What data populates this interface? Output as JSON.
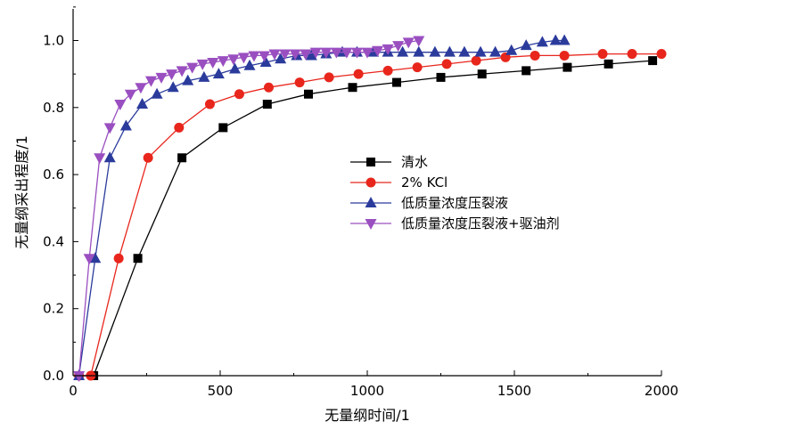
{
  "chart_data": {
    "type": "line",
    "title": "",
    "xlabel": "无量纲时间/1",
    "ylabel": "无量纲采出程度/1",
    "xlim": [
      0,
      2000
    ],
    "ylim": [
      0,
      1.1
    ],
    "xticks": [
      0,
      500,
      1000,
      1500,
      2000
    ],
    "yticks": [
      0.0,
      0.2,
      0.4,
      0.6,
      0.8,
      1.0
    ],
    "xtick_labels": [
      "0",
      "500",
      "1000",
      "1500",
      "2000"
    ],
    "ytick_labels": [
      "0.0",
      "0.2",
      "0.4",
      "0.6",
      "0.8",
      "1.0"
    ],
    "grid": false,
    "legend_position": "center-right",
    "series": [
      {
        "name": "清水",
        "color": "#000000",
        "marker": "square",
        "x": [
          20,
          70,
          220,
          370,
          510,
          660,
          800,
          950,
          1100,
          1250,
          1390,
          1540,
          1680,
          1820,
          1970
        ],
        "y": [
          0.0,
          0.0,
          0.35,
          0.65,
          0.74,
          0.81,
          0.84,
          0.86,
          0.875,
          0.89,
          0.9,
          0.91,
          0.92,
          0.93,
          0.94
        ]
      },
      {
        "name": "2% KCl",
        "color": "#e8261c",
        "marker": "circle",
        "x": [
          20,
          60,
          155,
          255,
          360,
          465,
          565,
          665,
          770,
          870,
          970,
          1070,
          1170,
          1270,
          1370,
          1470,
          1570,
          1670,
          1800,
          1900,
          2000
        ],
        "y": [
          0.0,
          0.0,
          0.35,
          0.65,
          0.74,
          0.81,
          0.84,
          0.86,
          0.875,
          0.89,
          0.9,
          0.91,
          0.92,
          0.93,
          0.94,
          0.95,
          0.955,
          0.955,
          0.96,
          0.96,
          0.96
        ]
      },
      {
        "name": "低质量浓度压裂液",
        "color": "#2b3b9c",
        "marker": "triangle-up",
        "x": [
          20,
          75,
          125,
          180,
          235,
          285,
          340,
          390,
          445,
          495,
          550,
          600,
          655,
          705,
          760,
          810,
          860,
          915,
          965,
          1020,
          1070,
          1120,
          1175,
          1230,
          1280,
          1330,
          1385,
          1435,
          1490,
          1540,
          1595,
          1640,
          1670
        ],
        "y": [
          0.0,
          0.35,
          0.65,
          0.745,
          0.81,
          0.84,
          0.86,
          0.88,
          0.89,
          0.9,
          0.915,
          0.925,
          0.935,
          0.945,
          0.955,
          0.955,
          0.96,
          0.965,
          0.965,
          0.965,
          0.965,
          0.965,
          0.965,
          0.965,
          0.965,
          0.965,
          0.965,
          0.965,
          0.97,
          0.985,
          0.995,
          1.0,
          1.0
        ]
      },
      {
        "name": "低质量浓度压裂液+驱油剂",
        "color": "#9a4fc0",
        "marker": "triangle-down",
        "x": [
          20,
          55,
          90,
          125,
          160,
          195,
          230,
          265,
          300,
          335,
          370,
          405,
          440,
          475,
          510,
          545,
          580,
          615,
          650,
          685,
          720,
          755,
          790,
          825,
          860,
          895,
          930,
          965,
          1000,
          1035,
          1070,
          1105,
          1140,
          1175
        ],
        "y": [
          0.0,
          0.35,
          0.65,
          0.74,
          0.81,
          0.84,
          0.86,
          0.88,
          0.89,
          0.9,
          0.91,
          0.92,
          0.93,
          0.935,
          0.94,
          0.945,
          0.95,
          0.955,
          0.955,
          0.96,
          0.96,
          0.96,
          0.96,
          0.965,
          0.965,
          0.965,
          0.965,
          0.965,
          0.965,
          0.97,
          0.975,
          0.985,
          0.995,
          1.0
        ]
      }
    ]
  }
}
